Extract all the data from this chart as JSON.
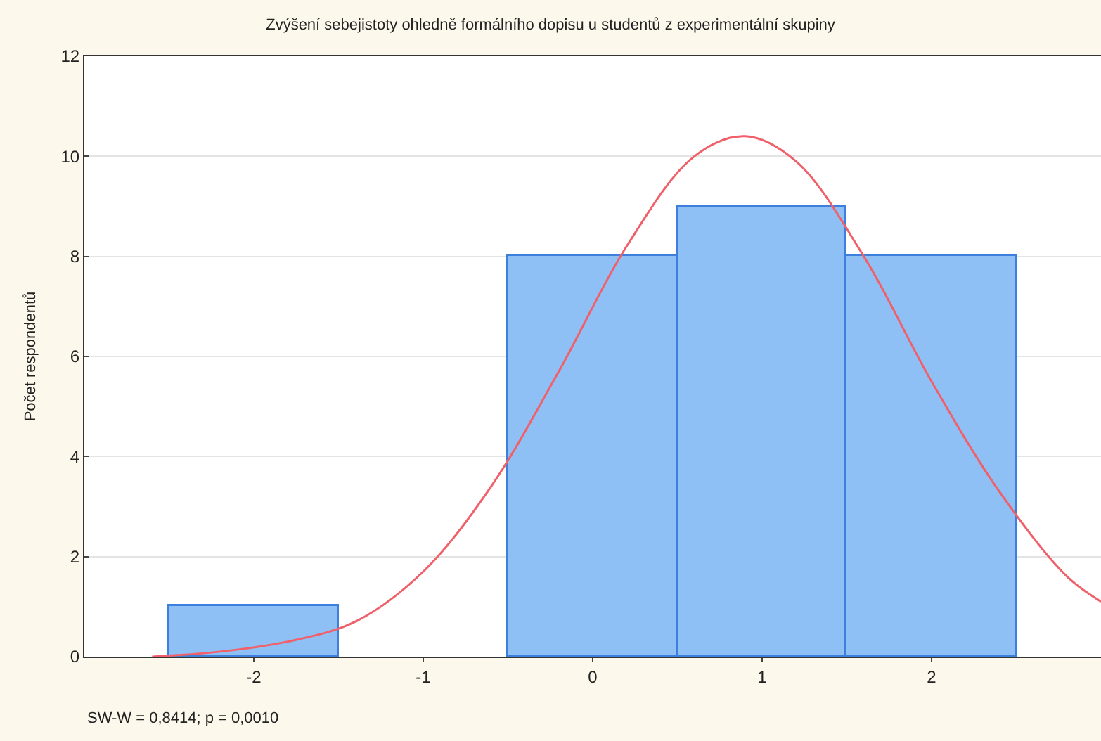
{
  "chart_data": {
    "type": "histogram",
    "title": "Zvýšení sebejistoty ohledně formálního dopisu u studentů z experimentální skupiny",
    "ylabel": "Počet respondentů",
    "series": [
      {
        "bins": [
          -2.5,
          -1.5,
          -0.5,
          0.5,
          1.5,
          2.5
        ],
        "values": [
          1,
          0,
          8,
          9,
          8
        ],
        "color": "#8fc0f5"
      },
      {
        "type": "line",
        "color": "#f0606a",
        "x": [
          -2.6,
          -2.2,
          -1.8,
          -1.4,
          -1.0,
          -0.6,
          -0.2,
          0.2,
          0.6,
          0.9,
          1.2,
          1.6,
          2.0,
          2.4,
          2.8,
          3.0
        ],
        "values": [
          0.0,
          0.1,
          0.3,
          0.7,
          1.7,
          3.4,
          5.7,
          8.2,
          10.0,
          10.4,
          9.9,
          8.0,
          5.5,
          3.3,
          1.6,
          1.1
        ]
      }
    ],
    "xlim": [
      -3,
      3
    ],
    "xticks": [
      -2,
      -1,
      0,
      1,
      2
    ],
    "ylim": [
      0,
      12
    ],
    "yticks": [
      0,
      2,
      4,
      6,
      8,
      10,
      12
    ],
    "grid": "y",
    "annotations": [
      "SW-W = 0,8414; p = 0,0010"
    ]
  }
}
